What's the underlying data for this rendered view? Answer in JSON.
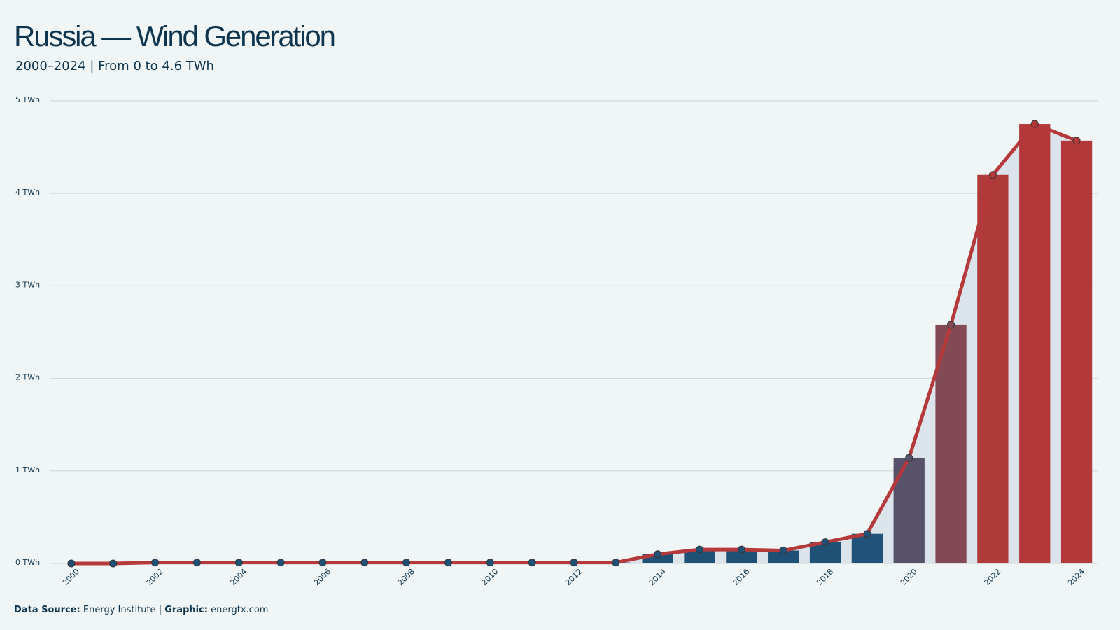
{
  "chart_data": {
    "type": "bar",
    "title": "Russia — Wind Generation",
    "subtitle": "2000–2024 | From 0 to 4.6 TWh",
    "footer": {
      "source_label": "Data Source:",
      "source": "Energy Institute",
      "separator": "|",
      "graphic_label": "Graphic:",
      "graphic": "energtx.com"
    },
    "categories": [
      "2000",
      null,
      "2002",
      null,
      "2004",
      null,
      "2006",
      null,
      "2008",
      null,
      "2010",
      null,
      "2012",
      null,
      "2014",
      null,
      "2016",
      null,
      "2018",
      null,
      "2020",
      null,
      "2022",
      null,
      "2024"
    ],
    "values": [
      0.0,
      0.0,
      0.01,
      0.01,
      0.01,
      0.01,
      0.01,
      0.01,
      0.01,
      0.01,
      0.01,
      0.01,
      0.01,
      0.01,
      0.1,
      0.15,
      0.15,
      0.14,
      0.23,
      0.32,
      1.14,
      2.58,
      4.2,
      4.75,
      4.57
    ],
    "colors": [
      "#1f5075",
      "#1f5075",
      "#1f5075",
      "#1f5075",
      "#1f5075",
      "#1f5075",
      "#1f5075",
      "#1f5075",
      "#1f5075",
      "#1f5075",
      "#1f5075",
      "#1f5075",
      "#1f5075",
      "#1f5075",
      "#1f5075",
      "#1f5075",
      "#1f5075",
      "#1f5075",
      "#1f5075",
      "#21537a",
      "#57516a",
      "#834a55",
      "#b0393a",
      "#b2383a",
      "#b2383a"
    ],
    "line": true,
    "line_color": "#b5393b",
    "area_color": "#dbe4ea",
    "ylim": [
      0,
      5
    ],
    "yticks": [
      {
        "value": 0,
        "label": "0 TWh"
      },
      {
        "value": 1,
        "label": "1 TWh"
      },
      {
        "value": 2,
        "label": "2 TWh"
      },
      {
        "value": 3,
        "label": "3 TWh"
      },
      {
        "value": 4,
        "label": "4 TWh"
      },
      {
        "value": 5,
        "label": "5 TWh"
      }
    ],
    "grid": true
  }
}
